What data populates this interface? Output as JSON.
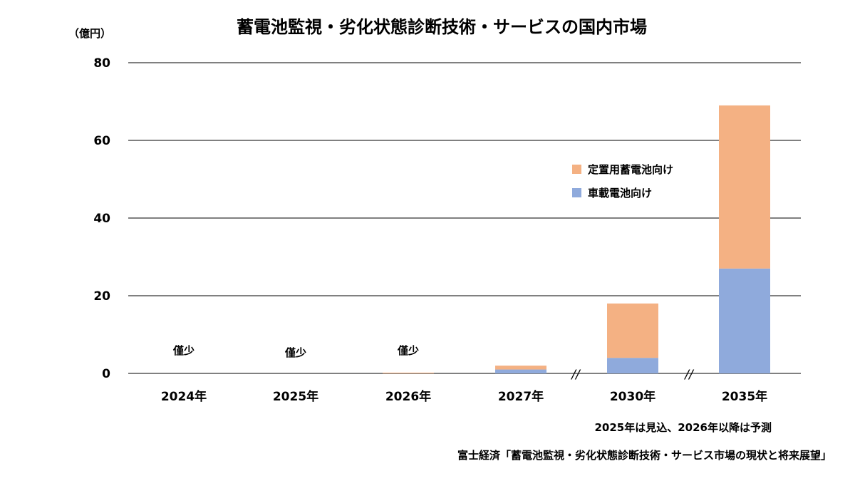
{
  "chart_data": {
    "type": "bar",
    "stacked": true,
    "title": "蓄電池監視・劣化状態診断技術・サービスの国内市場",
    "unit_label": "（億円）",
    "categories": [
      "2024年",
      "2025年",
      "2026年",
      "2027年",
      "2030年",
      "2035年"
    ],
    "series": [
      {
        "name": "車載電池向け",
        "color": "#8faadc",
        "values": [
          0,
          0,
          0,
          1,
          4,
          27
        ]
      },
      {
        "name": "定置用蓄電池向け",
        "color": "#f4b183",
        "values": [
          0,
          0,
          0.2,
          1,
          14,
          42
        ]
      }
    ],
    "value_annotations": [
      "僅少",
      "僅少",
      "僅少",
      "",
      "",
      ""
    ],
    "axis_break_marks": [
      "//",
      "//"
    ],
    "ylim": [
      0,
      80
    ],
    "yticks": [
      0,
      20,
      40,
      60,
      80
    ],
    "grid": true,
    "legend_position": "right"
  },
  "note": "2025年は見込、2026年以降は予測",
  "source": "富士経済「蓄電池監視・劣化状態診断技術・サービス市場の現状と将来展望」"
}
